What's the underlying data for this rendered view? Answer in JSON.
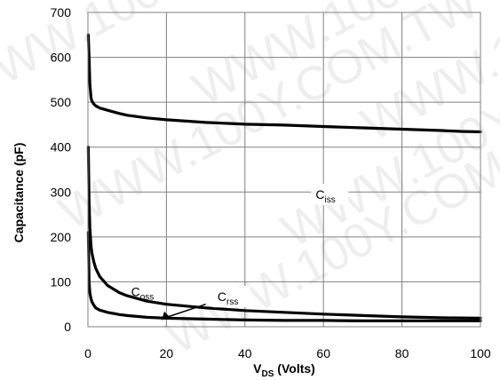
{
  "chart_data": {
    "type": "line",
    "xlabel": "V",
    "xlabel_sub": "DS",
    "xlabel_suffix": " (Volts)",
    "ylabel": "Capacitance (pF)",
    "xlim": [
      0,
      100
    ],
    "ylim": [
      0,
      700
    ],
    "xticks": [
      0,
      20,
      40,
      60,
      80,
      100
    ],
    "yticks": [
      0,
      100,
      200,
      300,
      400,
      500,
      600,
      700
    ],
    "grid": true,
    "watermark": "WWW.100Y.COM.TW",
    "series": [
      {
        "name": "C",
        "name_sub": "iss",
        "x": [
          0.1,
          0.3,
          0.5,
          0.8,
          1.0,
          1.5,
          2,
          3,
          5,
          8,
          10,
          15,
          20,
          30,
          40,
          50,
          60,
          70,
          80,
          90,
          95,
          100
        ],
        "values": [
          650,
          600,
          540,
          510,
          503,
          496,
          492,
          487,
          482,
          475,
          471,
          465,
          461,
          455,
          451,
          449,
          446,
          443,
          440,
          437,
          435,
          434
        ]
      },
      {
        "name": "C",
        "name_sub": "oss",
        "x": [
          0.1,
          0.3,
          0.5,
          0.8,
          1.0,
          1.5,
          2,
          3,
          5,
          8,
          10,
          15,
          20,
          30,
          40,
          50,
          60,
          70,
          80,
          90,
          100
        ],
        "values": [
          400,
          280,
          220,
          180,
          165,
          145,
          130,
          112,
          92,
          76,
          69,
          57,
          50,
          42,
          36,
          32,
          28,
          25,
          22,
          20,
          19
        ]
      },
      {
        "name": "C",
        "name_sub": "rss",
        "x": [
          0.1,
          0.3,
          0.5,
          0.8,
          1.0,
          1.5,
          2,
          3,
          5,
          8,
          10,
          15,
          20,
          30,
          40,
          50,
          60,
          70,
          80,
          90,
          100
        ],
        "values": [
          210,
          100,
          75,
          62,
          56,
          48,
          42,
          37,
          32,
          27,
          25,
          21,
          19,
          17,
          15,
          14,
          14,
          13,
          13,
          13,
          13
        ]
      }
    ]
  }
}
